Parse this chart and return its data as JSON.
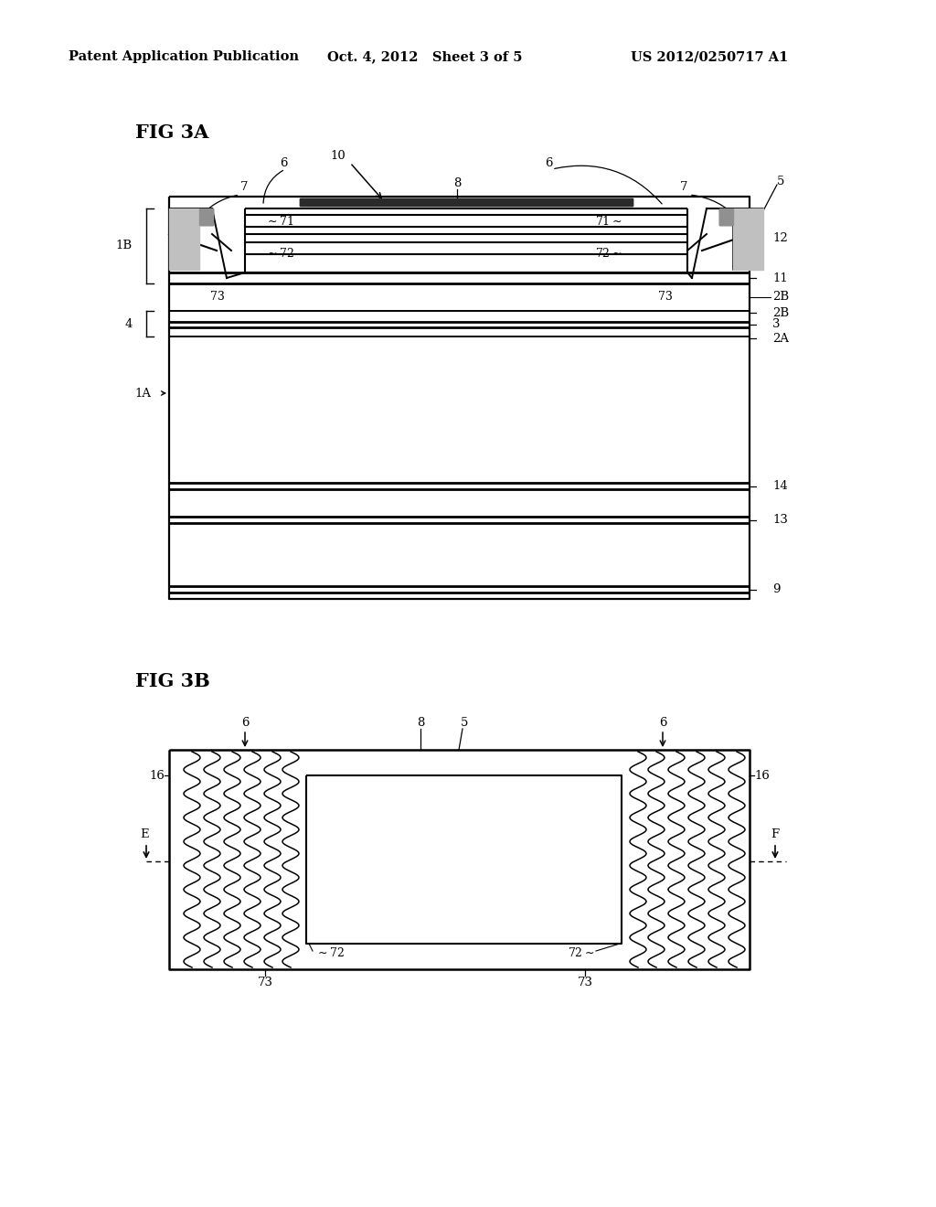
{
  "header_left": "Patent Application Publication",
  "header_mid": "Oct. 4, 2012   Sheet 3 of 5",
  "header_right": "US 2012/0250717 A1",
  "fig3a_label": "FIG 3A",
  "fig3b_label": "FIG 3B",
  "bg_color": "#ffffff",
  "line_color": "#000000"
}
